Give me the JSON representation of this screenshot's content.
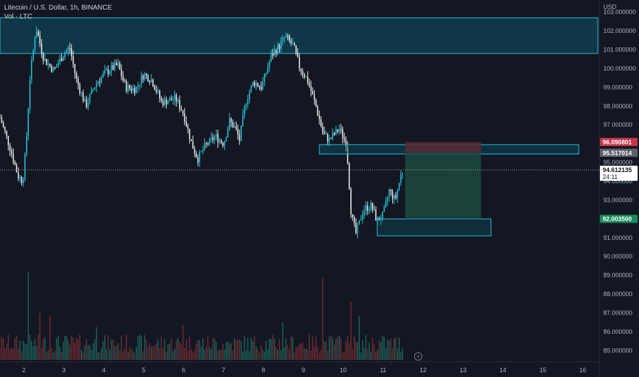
{
  "header": {
    "title": "Litecoin / U.S. Dollar, 1h, BINANCE",
    "volume_label": "Vol · LTC"
  },
  "price_scale": {
    "currency": "USD",
    "ticks": [
      "103.000000",
      "102.000000",
      "101.000000",
      "100.000000",
      "99.000000",
      "98.000000",
      "97.000000",
      "96.000000",
      "95.000000",
      "94.000000",
      "93.000000",
      "92.000000",
      "91.000000",
      "90.000000",
      "89.000000",
      "88.000000",
      "87.000000",
      "86.000000",
      "85.000000"
    ]
  },
  "time_scale": {
    "ticks": [
      "2",
      "3",
      "4",
      "5",
      "6",
      "7",
      "8",
      "9",
      "10",
      "11",
      "12",
      "13",
      "14",
      "15",
      "16"
    ]
  },
  "badges": {
    "target": "96.090801",
    "entry": "95.517014",
    "current": "94.612135",
    "countdown": "24:11",
    "stop": "92.003500"
  },
  "colors": {
    "background": "#131722",
    "bull": "#26c6da",
    "bear": "#f0f0f0",
    "zone_fill": "#0e5266",
    "zone_border": "#26c6da",
    "profit_fill": "#1c4a3f",
    "loss_fill": "#5a2a36",
    "target_badge": "#c2364a",
    "entry_badge": "#5d606b",
    "stop_badge": "#1a8a5a",
    "vol_up": "#1e5f56",
    "vol_down": "#6b2b32"
  },
  "chart_data": {
    "type": "candlestick",
    "symbol": "LTCUSD",
    "interval": "1h",
    "ylim": [
      84.5,
      103.5
    ],
    "x_range_days": [
      1.4,
      16.0
    ],
    "resistance_zone": [
      100.8,
      102.7
    ],
    "support_zone_days": [
      9.4,
      15.9
    ],
    "support_zone": [
      95.45,
      95.95
    ],
    "demand_zone_days": [
      10.85,
      13.7
    ],
    "demand_zone": [
      91.1,
      92.0
    ],
    "position": {
      "entry_day": 11.55,
      "exit_day": 13.45,
      "entry": 95.517014,
      "target": 96.090801,
      "stop": 92.0035
    },
    "anchors": [
      [
        1.4,
        97.4
      ],
      [
        1.65,
        95.8
      ],
      [
        1.85,
        94.3
      ],
      [
        1.97,
        94.0
      ],
      [
        2.05,
        95.8
      ],
      [
        2.15,
        99.5
      ],
      [
        2.3,
        102.2
      ],
      [
        2.5,
        100.5
      ],
      [
        2.75,
        99.9
      ],
      [
        3.0,
        100.8
      ],
      [
        3.15,
        101.1
      ],
      [
        3.3,
        99.5
      ],
      [
        3.55,
        98.0
      ],
      [
        3.8,
        99.2
      ],
      [
        4.05,
        99.8
      ],
      [
        4.35,
        100.2
      ],
      [
        4.55,
        99.0
      ],
      [
        4.8,
        98.9
      ],
      [
        5.0,
        99.7
      ],
      [
        5.2,
        99.4
      ],
      [
        5.45,
        98.2
      ],
      [
        5.8,
        98.4
      ],
      [
        6.0,
        97.6
      ],
      [
        6.2,
        96.0
      ],
      [
        6.35,
        95.2
      ],
      [
        6.55,
        95.9
      ],
      [
        6.8,
        96.4
      ],
      [
        7.0,
        96.0
      ],
      [
        7.15,
        97.2
      ],
      [
        7.3,
        96.8
      ],
      [
        7.4,
        96.2
      ],
      [
        7.55,
        98.2
      ],
      [
        7.75,
        99.3
      ],
      [
        7.95,
        99.0
      ],
      [
        8.2,
        100.7
      ],
      [
        8.4,
        101.2
      ],
      [
        8.55,
        101.7
      ],
      [
        8.75,
        101.2
      ],
      [
        8.9,
        100.1
      ],
      [
        9.1,
        99.4
      ],
      [
        9.3,
        98.1
      ],
      [
        9.5,
        96.5
      ],
      [
        9.65,
        96.2
      ],
      [
        9.9,
        96.8
      ],
      [
        10.08,
        96.0
      ],
      [
        10.2,
        92.2
      ],
      [
        10.32,
        91.2
      ],
      [
        10.5,
        92.5
      ],
      [
        10.7,
        92.7
      ],
      [
        10.85,
        91.9
      ],
      [
        11.0,
        92.2
      ],
      [
        11.15,
        93.5
      ],
      [
        11.3,
        93.0
      ],
      [
        11.45,
        94.4
      ],
      [
        11.5,
        94.6
      ]
    ],
    "volume_spikes": [
      [
        2.1,
        0.75
      ],
      [
        2.4,
        0.4
      ],
      [
        2.65,
        0.38
      ],
      [
        9.5,
        0.7
      ],
      [
        10.2,
        0.5
      ],
      [
        10.4,
        0.38
      ],
      [
        8.5,
        0.32
      ],
      [
        6.0,
        0.3
      ],
      [
        3.8,
        0.28
      ]
    ]
  }
}
